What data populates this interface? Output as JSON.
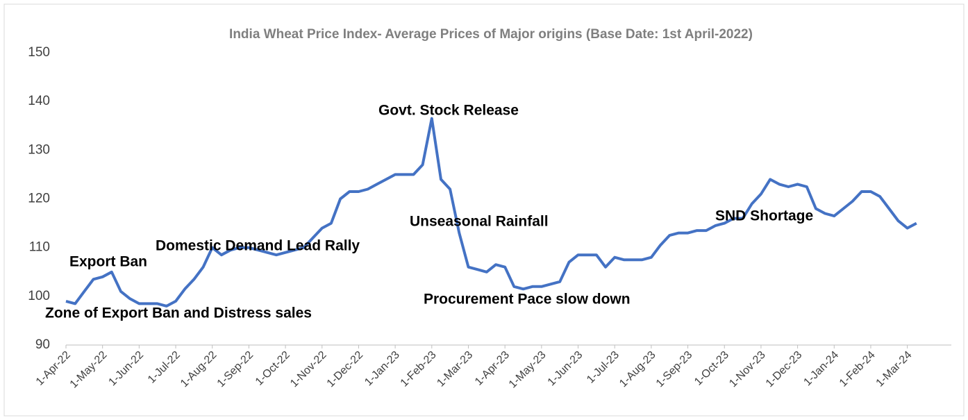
{
  "chart_data": {
    "type": "line",
    "title": "India Wheat Price  Index- Average Prices of Major origins (Base Date: 1st April-2022)",
    "categories": [
      "1-Apr-22",
      null,
      null,
      null,
      "1-May-22",
      null,
      null,
      null,
      "1-Jun-22",
      null,
      null,
      null,
      "1-Jul-22",
      null,
      null,
      null,
      "1-Aug-22",
      null,
      null,
      null,
      "1-Sep-22",
      null,
      null,
      null,
      "1-Oct-22",
      null,
      null,
      null,
      "1-Nov-22",
      null,
      null,
      null,
      "1-Dec-22",
      null,
      null,
      null,
      "1-Jan-23",
      null,
      null,
      null,
      "1-Feb-23",
      null,
      null,
      null,
      "1-Mar-23",
      null,
      null,
      null,
      "1-Apr-23",
      null,
      null,
      null,
      "1-May-23",
      null,
      null,
      null,
      "1-Jun-23",
      null,
      null,
      null,
      "1-Jul-23",
      null,
      null,
      null,
      "1-Aug-23",
      null,
      null,
      null,
      "1-Sep-23",
      null,
      null,
      null,
      "1-Oct-23",
      null,
      null,
      null,
      "1-Nov-23",
      null,
      null,
      null,
      "1-Dec-23",
      null,
      null,
      null,
      "1-Jan-24",
      null,
      null,
      null,
      "1-Feb-24",
      null,
      null,
      null,
      "1-Mar-24",
      null
    ],
    "series": [
      {
        "color": "#4472c4",
        "values": [
          99,
          98.5,
          101,
          103.5,
          104,
          105,
          101,
          99.5,
          98.5,
          98.5,
          98.5,
          98,
          99,
          101.5,
          103.5,
          106,
          110,
          108.5,
          109.5,
          110,
          110,
          109.5,
          109,
          108.5,
          109,
          109.5,
          110,
          112,
          114,
          115,
          120,
          121.5,
          121.5,
          122,
          123,
          124,
          125,
          125,
          125,
          127,
          136.5,
          124,
          122,
          113,
          106,
          105.5,
          105,
          106.5,
          106,
          102,
          101.5,
          102,
          102,
          102.5,
          103,
          107,
          108.5,
          108.5,
          108.5,
          106,
          108,
          107.5,
          107.5,
          107.5,
          108,
          110.5,
          112.5,
          113,
          113,
          113.5,
          113.5,
          114.5,
          115,
          116,
          116,
          119,
          121,
          124,
          123,
          122.5,
          123,
          122.5,
          118,
          117,
          116.5,
          118,
          119.5,
          121.5,
          121.5,
          120.5,
          118,
          115.5,
          114,
          115
        ]
      }
    ],
    "ylim": [
      90,
      150
    ],
    "yticks": [
      90,
      100,
      110,
      120,
      130,
      140,
      150
    ],
    "grid": false,
    "annotations": [
      "Export Ban",
      "Zone of Export Ban and Distress sales",
      "Domestic Demand Lead Rally",
      "Govt. Stock Release",
      "Unseasonal Rainfall",
      "Procurement Pace slow down",
      "SND Shortage"
    ]
  }
}
